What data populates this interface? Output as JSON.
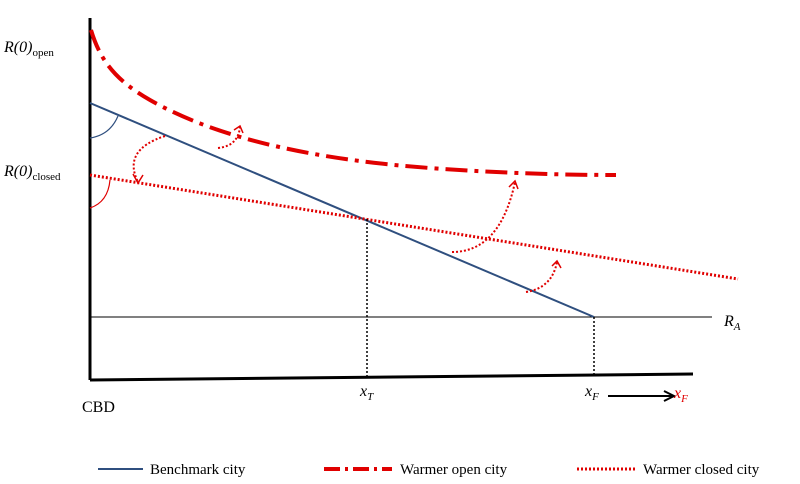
{
  "labels": {
    "r0_open_main": "R(0)",
    "r0_open_sub": "open",
    "r0_closed_main": "R(0)",
    "r0_closed_sub": "closed",
    "ra_main": "R",
    "ra_sub": "A",
    "cbd": "CBD",
    "xt_main": "x",
    "xt_sub": "T",
    "xf_main": "x",
    "xf_sub": "F",
    "xf_new_main": "x",
    "xf_new_sub": "F"
  },
  "legend": [
    {
      "label": "Benchmark city",
      "color": "#2F4F7F",
      "style": "solid"
    },
    {
      "label": "Warmer open city",
      "color": "#E00000",
      "style": "dash-dot"
    },
    {
      "label": "Warmer closed city",
      "color": "#E00000",
      "style": "dotted"
    }
  ],
  "colors": {
    "benchmark": "#2F4F7F",
    "warmer": "#E00000",
    "axis": "#000000"
  }
}
